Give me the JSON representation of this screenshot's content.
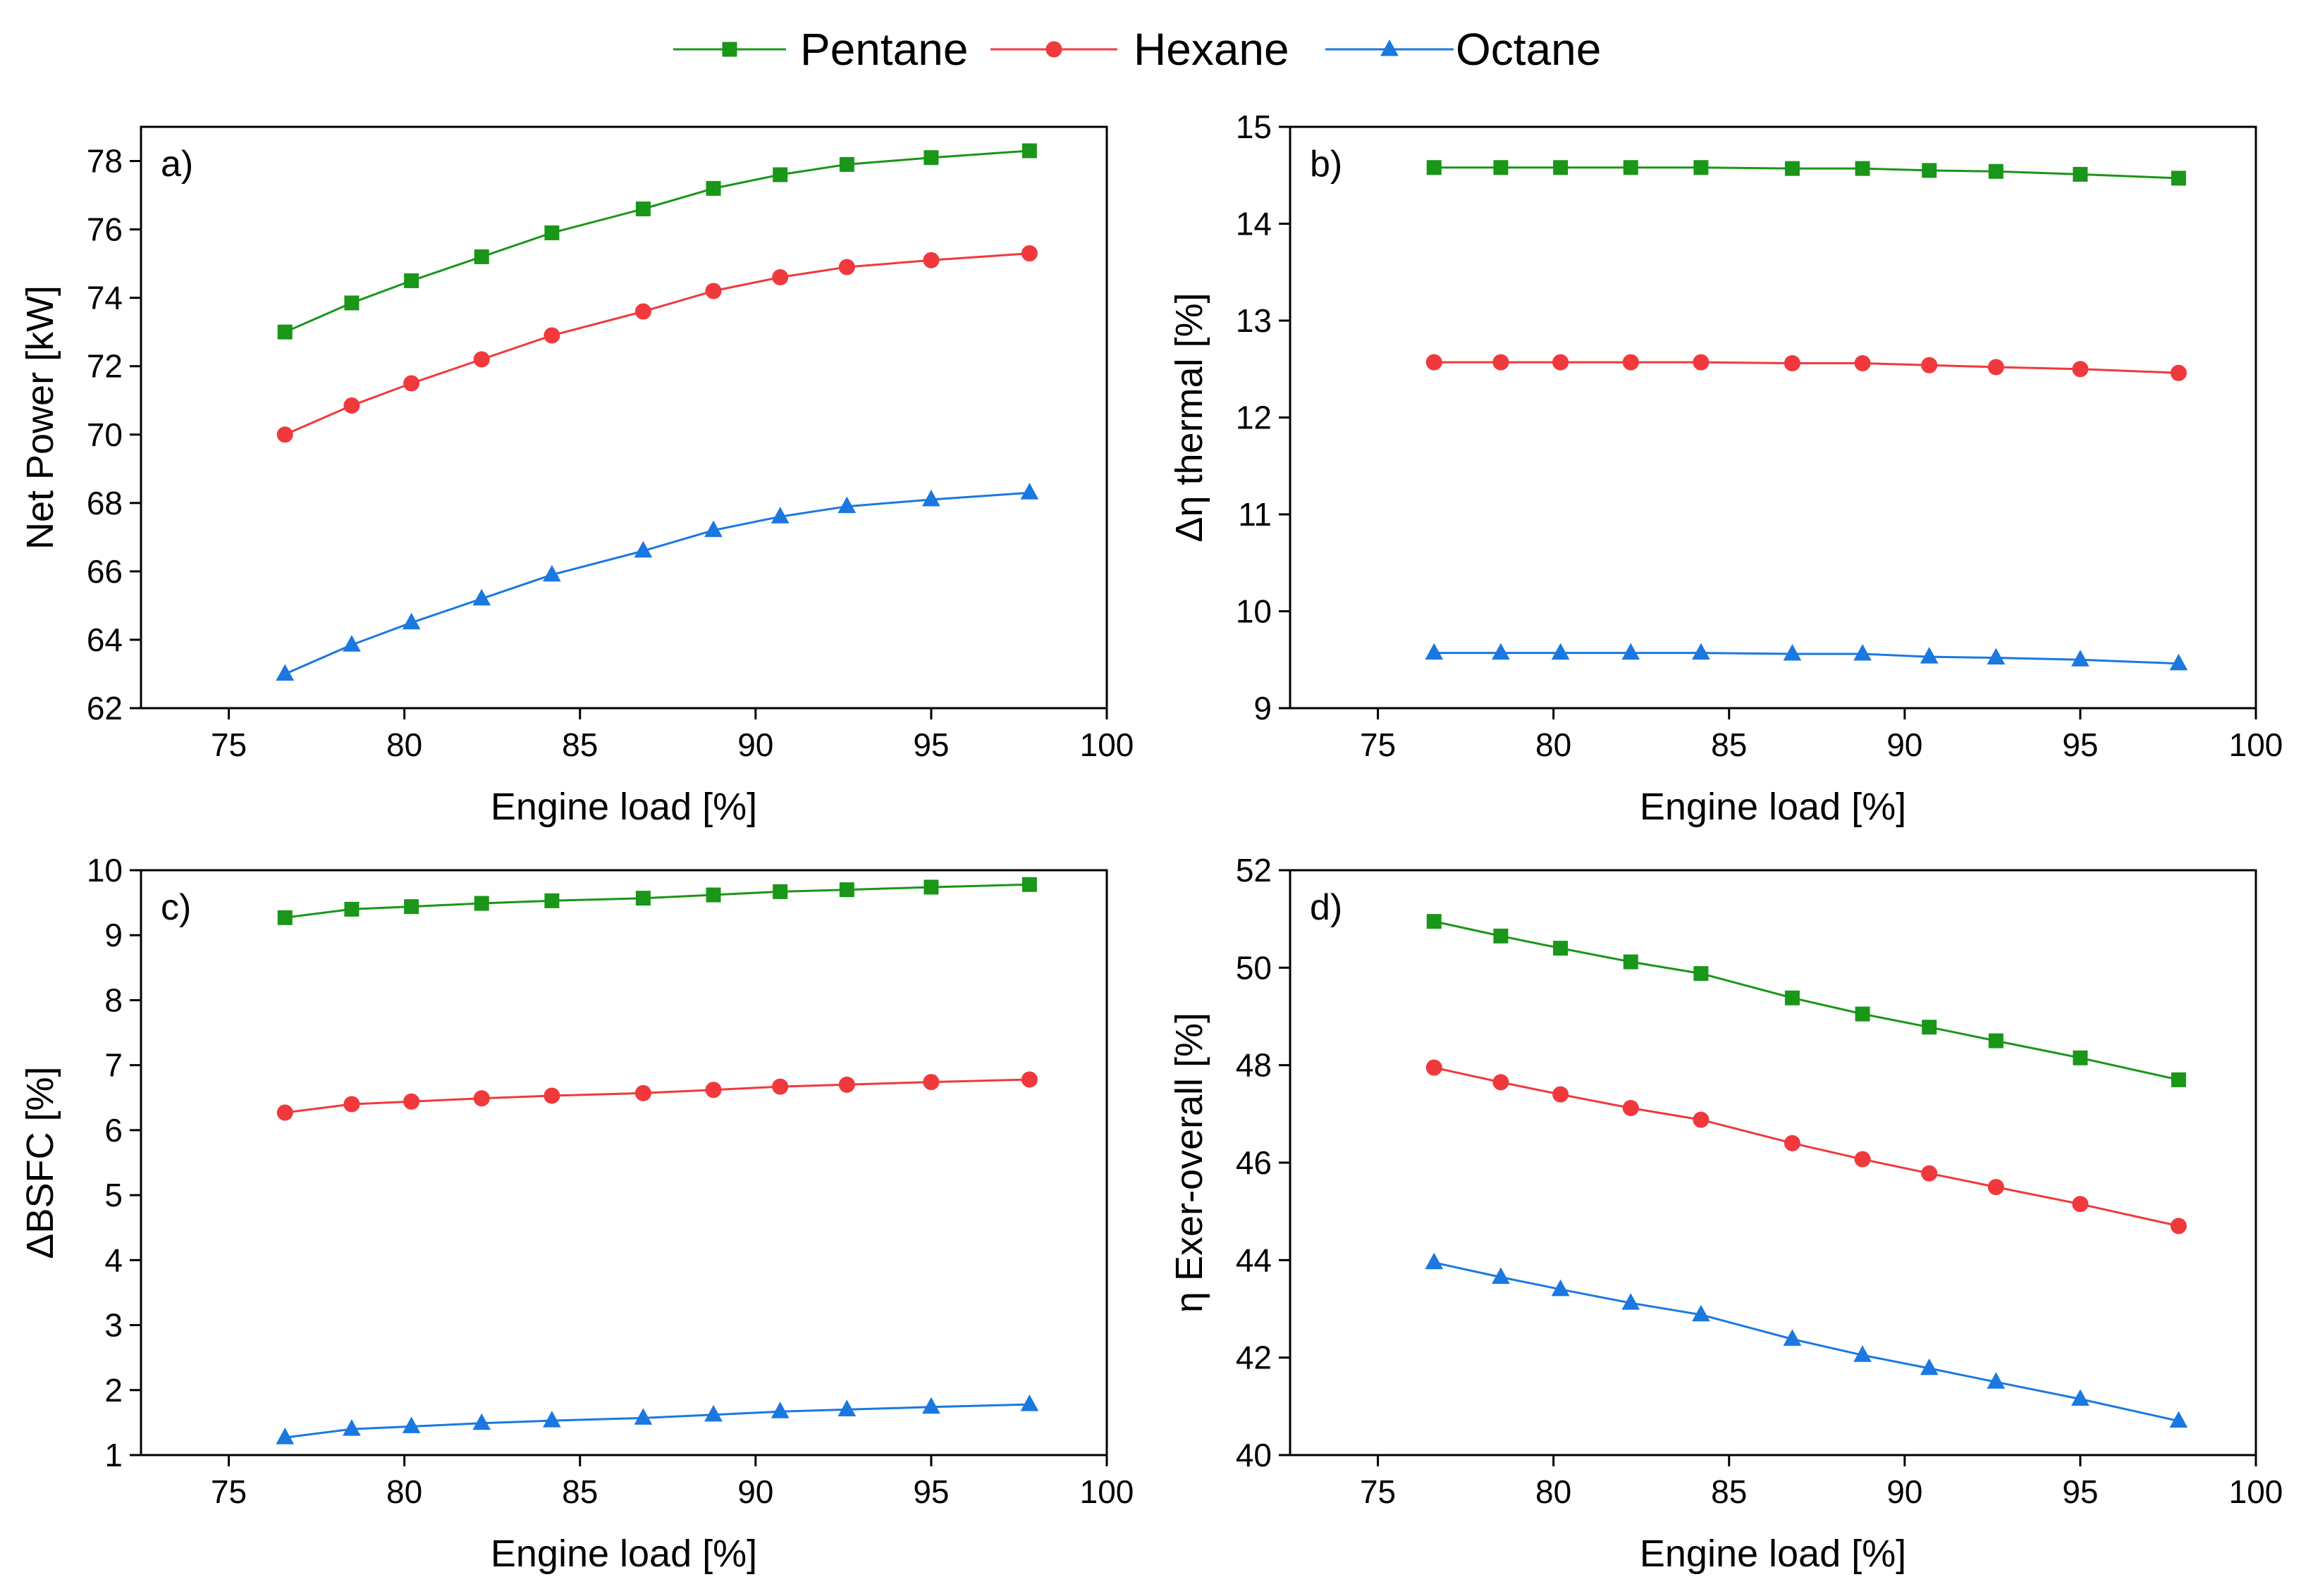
{
  "legend": [
    {
      "name": "Pentane",
      "color": "#1a9618",
      "marker": "square"
    },
    {
      "name": "Hexane",
      "color": "#f0393c",
      "marker": "circle"
    },
    {
      "name": "Octane",
      "color": "#1a78e0",
      "marker": "triangle"
    }
  ],
  "chart_data": [
    {
      "type": "line",
      "panel": "a)",
      "xlabel": "Engine load [%]",
      "ylabel": "Net Power [kW]",
      "xlim": [
        72.5,
        100
      ],
      "ylim": [
        62,
        79
      ],
      "xticks": [
        75,
        80,
        85,
        90,
        95,
        100
      ],
      "yticks": [
        62,
        64,
        66,
        68,
        70,
        72,
        74,
        76,
        78
      ],
      "x": [
        76.6,
        78.5,
        80.2,
        82.2,
        84.2,
        86.8,
        88.8,
        90.7,
        92.6,
        95.0,
        97.8
      ],
      "series": [
        {
          "name": "Pentane",
          "values": [
            73.0,
            73.85,
            74.5,
            75.2,
            75.9,
            76.6,
            77.2,
            77.6,
            77.9,
            78.1,
            78.3
          ]
        },
        {
          "name": "Hexane",
          "values": [
            70.0,
            70.85,
            71.5,
            72.2,
            72.9,
            73.6,
            74.2,
            74.6,
            74.9,
            75.1,
            75.3
          ]
        },
        {
          "name": "Octane",
          "values": [
            63.0,
            63.85,
            64.5,
            65.2,
            65.9,
            66.6,
            67.2,
            67.6,
            67.9,
            68.1,
            68.3
          ]
        }
      ]
    },
    {
      "type": "line",
      "panel": "b)",
      "xlabel": "Engine load [%]",
      "ylabel": "Δη thermal [%]",
      "xlim": [
        72.5,
        100
      ],
      "ylim": [
        9,
        15
      ],
      "xticks": [
        75,
        80,
        85,
        90,
        95,
        100
      ],
      "yticks": [
        9,
        10,
        11,
        12,
        13,
        14,
        15
      ],
      "x": [
        76.6,
        78.5,
        80.2,
        82.2,
        84.2,
        86.8,
        88.8,
        90.7,
        92.6,
        95.0,
        97.8
      ],
      "series": [
        {
          "name": "Pentane",
          "values": [
            14.58,
            14.58,
            14.58,
            14.58,
            14.58,
            14.57,
            14.57,
            14.55,
            14.54,
            14.51,
            14.47
          ]
        },
        {
          "name": "Hexane",
          "values": [
            12.57,
            12.57,
            12.57,
            12.57,
            12.57,
            12.56,
            12.56,
            12.54,
            12.52,
            12.5,
            12.46
          ]
        },
        {
          "name": "Octane",
          "values": [
            9.57,
            9.57,
            9.57,
            9.57,
            9.57,
            9.56,
            9.56,
            9.53,
            9.52,
            9.5,
            9.46
          ]
        }
      ]
    },
    {
      "type": "line",
      "panel": "c)",
      "xlabel": "Engine load [%]",
      "ylabel": "ΔBSFC [%]",
      "xlim": [
        72.5,
        100
      ],
      "ylim": [
        1,
        10
      ],
      "xticks": [
        75,
        80,
        85,
        90,
        95,
        100
      ],
      "yticks": [
        1,
        2,
        3,
        4,
        5,
        6,
        7,
        8,
        9,
        10
      ],
      "x": [
        76.6,
        78.5,
        80.2,
        82.2,
        84.2,
        86.8,
        88.8,
        90.7,
        92.6,
        95.0,
        97.8
      ],
      "series": [
        {
          "name": "Pentane",
          "values": [
            9.27,
            9.4,
            9.44,
            9.49,
            9.53,
            9.57,
            9.62,
            9.67,
            9.7,
            9.74,
            9.78
          ]
        },
        {
          "name": "Hexane",
          "values": [
            6.27,
            6.4,
            6.44,
            6.49,
            6.53,
            6.57,
            6.62,
            6.67,
            6.7,
            6.74,
            6.78
          ]
        },
        {
          "name": "Octane",
          "values": [
            1.27,
            1.4,
            1.44,
            1.49,
            1.53,
            1.57,
            1.62,
            1.67,
            1.7,
            1.74,
            1.78
          ]
        }
      ]
    },
    {
      "type": "line",
      "panel": "d)",
      "xlabel": "Engine load [%]",
      "ylabel": "η Exer-overall [%]",
      "xlim": [
        72.5,
        100
      ],
      "ylim": [
        40,
        52
      ],
      "xticks": [
        75,
        80,
        85,
        90,
        95,
        100
      ],
      "yticks": [
        40,
        42,
        44,
        46,
        48,
        50,
        52
      ],
      "x": [
        76.6,
        78.5,
        80.2,
        82.2,
        84.2,
        86.8,
        88.8,
        90.7,
        92.6,
        95.0,
        97.8
      ],
      "series": [
        {
          "name": "Pentane",
          "values": [
            50.95,
            50.65,
            50.4,
            50.12,
            49.88,
            49.38,
            49.05,
            48.78,
            48.5,
            48.15,
            47.7
          ]
        },
        {
          "name": "Hexane",
          "values": [
            47.95,
            47.65,
            47.4,
            47.12,
            46.88,
            46.4,
            46.07,
            45.78,
            45.5,
            45.15,
            44.7
          ]
        },
        {
          "name": "Octane",
          "values": [
            43.95,
            43.65,
            43.4,
            43.12,
            42.88,
            42.38,
            42.05,
            41.78,
            41.5,
            41.15,
            40.7
          ]
        }
      ]
    }
  ]
}
